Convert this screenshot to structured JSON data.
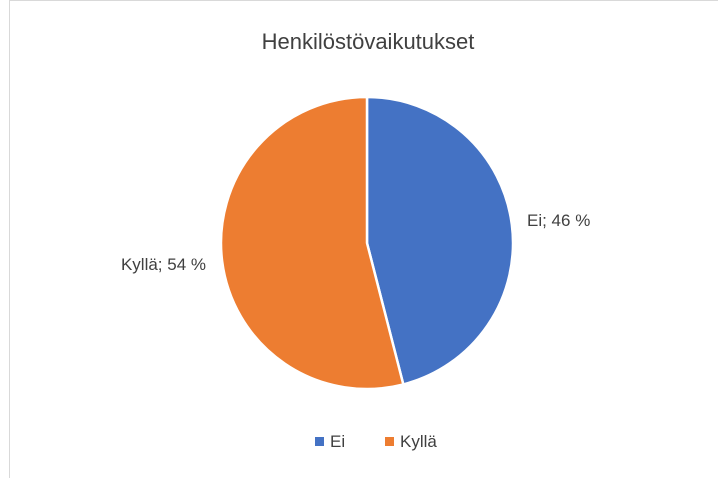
{
  "chart_data": {
    "type": "pie",
    "title": "Henkilöstövaikutukset",
    "categories": [
      "Ei",
      "Kyllä"
    ],
    "values": [
      46,
      54
    ],
    "unit": "%",
    "data_labels": [
      "Ei; 46 %",
      "Kyllä; 54 %"
    ],
    "colors": [
      "#4472c4",
      "#ed7d31"
    ],
    "legend_position": "bottom",
    "start_angle_degrees": 0,
    "direction": "clockwise"
  }
}
